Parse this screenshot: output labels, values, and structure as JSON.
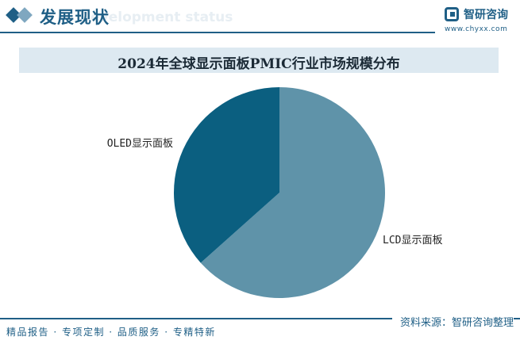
{
  "header": {
    "section_title": "发展现状",
    "section_subtitle": "Development status",
    "logo_text": "智研咨询",
    "logo_url": "www.chyxx.com"
  },
  "footer": {
    "source": "资料来源：智研咨询整理",
    "slogan": "精品报告 · 专项定制 · 品质服务 · 专精特新"
  },
  "colors": {
    "accent": "#1f5f86",
    "banner": "#dde9f1",
    "slice_lcd": "#5f93a9",
    "slice_oled": "#0b5f80"
  },
  "chart_data": {
    "type": "pie",
    "title": "2024年全球显示面板PMIC行业市场规模分布",
    "slices": [
      {
        "label": "LCD显示面板",
        "value": 63.4,
        "color": "#5f93a9"
      },
      {
        "label": "OLED显示面板",
        "value": 36.6,
        "color": "#0b5f80"
      }
    ],
    "start_angle_deg": 0,
    "direction": "clockwise",
    "legend": "none"
  }
}
